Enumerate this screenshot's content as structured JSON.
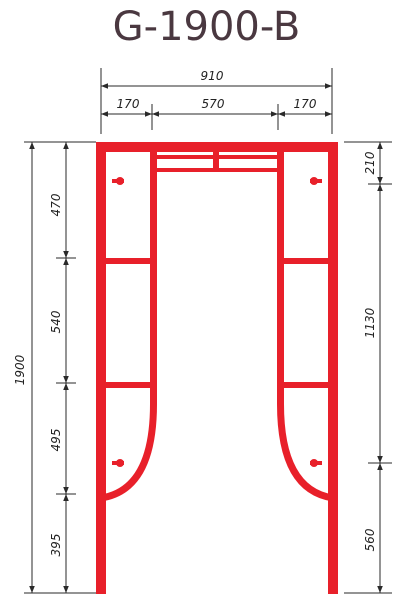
{
  "title": "G-1900-B",
  "colors": {
    "frame": "#e8202a",
    "dimension": "#2a2a2a",
    "title": "#4a3840"
  },
  "dimensions": {
    "overall_width": "910",
    "left_span": "170",
    "middle_span": "570",
    "right_span": "170",
    "overall_height": "1900",
    "left_segments": [
      "470",
      "540",
      "495",
      "395"
    ],
    "right_top": "210",
    "right_middle": "1130",
    "right_bottom": "560"
  }
}
